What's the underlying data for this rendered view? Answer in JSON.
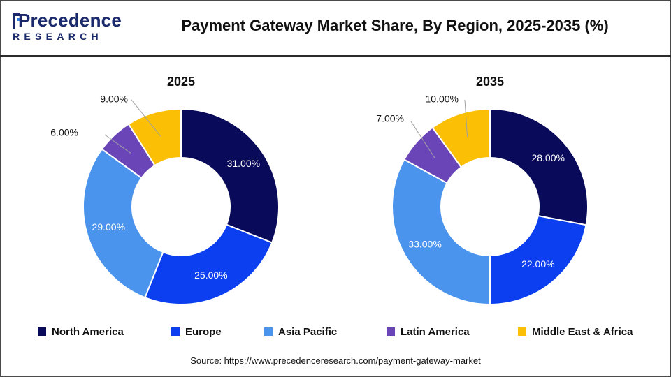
{
  "header": {
    "logo_word": "Precedence",
    "logo_sub": "RESEARCH",
    "title": "Payment Gateway Market Share, By Region, 2025-2035 (%)"
  },
  "colors": {
    "North America": "#0a0a5a",
    "Europe": "#0b3ff0",
    "Asia Pacific": "#4a94ee",
    "Latin America": "#6a45b8",
    "Middle East & Africa": "#fbbf05"
  },
  "chart_data": [
    {
      "type": "pie",
      "title": "2025",
      "categories": [
        "North America",
        "Europe",
        "Asia Pacific",
        "Latin America",
        "Middle East & Africa"
      ],
      "values": [
        31,
        25,
        29,
        6,
        9
      ],
      "labels": [
        "31.00%",
        "25.00%",
        "29.00%",
        "6.00%",
        "9.00%"
      ],
      "donut": true
    },
    {
      "type": "pie",
      "title": "2035",
      "categories": [
        "North America",
        "Europe",
        "Asia Pacific",
        "Latin America",
        "Middle East & Africa"
      ],
      "values": [
        28,
        22,
        33,
        7,
        10
      ],
      "labels": [
        "28.00%",
        "22.00%",
        "33.00%",
        "7.00%",
        "10.00%"
      ],
      "donut": true
    }
  ],
  "legend": [
    "North America",
    "Europe",
    "Asia Pacific",
    "Latin America",
    "Middle East & Africa"
  ],
  "source": "Source: https://www.precedenceresearch.com/payment-gateway-market"
}
